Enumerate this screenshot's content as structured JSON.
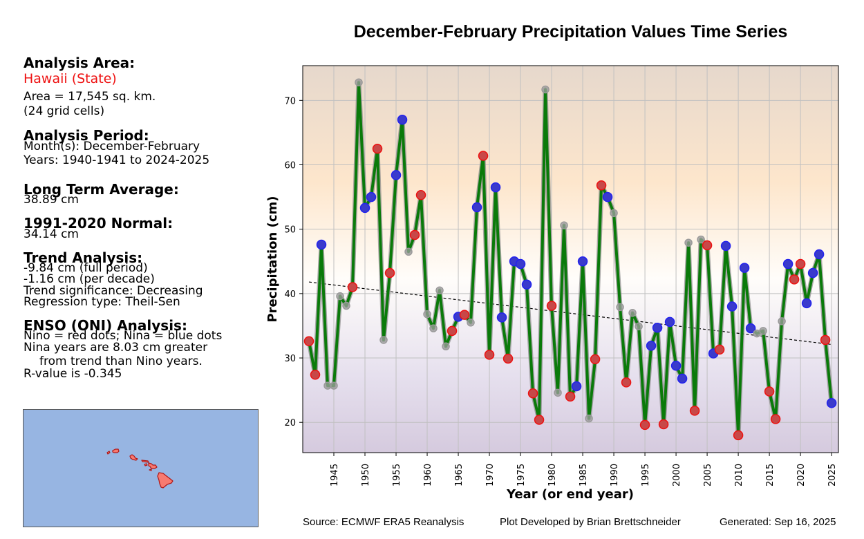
{
  "info_panel": {
    "area_header": "Analysis Area:",
    "area_name": "Hawaii (State)",
    "area_size": "Area = 17,545 sq. km.",
    "grid_cells": "(24 grid cells)",
    "period_header": "Analysis Period:",
    "months": "Month(s): December-February",
    "years": "Years: 1940-1941 to 2024-2025",
    "lta_header": "Long Term Average:",
    "lta_value": "38.89 cm",
    "normal_header": "1991-2020 Normal:",
    "normal_value": "34.14 cm",
    "trend_header": "Trend Analysis:",
    "trend_full": "-9.84 cm (full period)",
    "trend_decade": "-1.16 cm (per decade)",
    "trend_sig": "Trend significance: Decreasing",
    "regression": "Regression type: Theil-Sen",
    "enso_header": "ENSO (ONI) Analysis:",
    "enso_legend": "Nino = red dots; Nina = blue dots",
    "enso_line1": "Nina years are 8.03 cm greater",
    "enso_line2": "from trend than Nino years.",
    "rvalue": "R-value is -0.345"
  },
  "footer": {
    "source": "Source: ECMWF ERA5 Reanalysis",
    "developer": "Plot Developed by Brian Brettschneider",
    "generated": "Generated: Sep 16, 2025"
  },
  "colors": {
    "line": "#0a7a0a",
    "nino": "#c84848",
    "nino_edge": "#ee1111",
    "nina": "#3a3acc",
    "nina_edge": "#2222ee",
    "neutral": "#a0a0a0",
    "map_ocean": "#97b5e2",
    "map_land": "#f77a70"
  },
  "chart_data": {
    "type": "line",
    "title": "December-February Precipitation Values Time Series",
    "xlabel": "Year (or end year)",
    "ylabel": "Precipitation (cm)",
    "xlim": [
      1940,
      2026.1
    ],
    "ylim": [
      15.3,
      75.4
    ],
    "xticks": [
      1945,
      1950,
      1955,
      1960,
      1965,
      1970,
      1975,
      1980,
      1985,
      1990,
      1995,
      2000,
      2005,
      2010,
      2015,
      2020,
      2025
    ],
    "yticks": [
      20,
      30,
      40,
      50,
      60,
      70
    ],
    "grid": true,
    "x": [
      1941,
      1942,
      1943,
      1944,
      1945,
      1946,
      1947,
      1948,
      1949,
      1950,
      1951,
      1952,
      1953,
      1954,
      1955,
      1956,
      1957,
      1958,
      1959,
      1960,
      1961,
      1962,
      1963,
      1964,
      1965,
      1966,
      1967,
      1968,
      1969,
      1970,
      1971,
      1972,
      1973,
      1974,
      1975,
      1976,
      1977,
      1978,
      1979,
      1980,
      1981,
      1982,
      1983,
      1984,
      1985,
      1986,
      1987,
      1988,
      1989,
      1990,
      1991,
      1992,
      1993,
      1994,
      1995,
      1996,
      1997,
      1998,
      1999,
      2000,
      2001,
      2002,
      2003,
      2004,
      2005,
      2006,
      2007,
      2008,
      2009,
      2010,
      2011,
      2012,
      2013,
      2014,
      2015,
      2016,
      2017,
      2018,
      2019,
      2020,
      2021,
      2022,
      2023,
      2024,
      2025
    ],
    "values": [
      32.6,
      27.4,
      47.6,
      25.7,
      25.7,
      39.6,
      38.1,
      41.0,
      72.8,
      53.3,
      55.0,
      62.5,
      32.8,
      43.2,
      58.4,
      67.0,
      46.5,
      49.1,
      55.3,
      36.8,
      34.6,
      40.5,
      31.8,
      34.2,
      36.4,
      36.7,
      35.5,
      53.4,
      61.4,
      30.5,
      56.5,
      36.3,
      29.9,
      45.0,
      44.6,
      41.4,
      24.5,
      20.4,
      71.7,
      38.1,
      24.6,
      50.6,
      24.0,
      25.6,
      45.0,
      20.6,
      29.8,
      56.8,
      55.0,
      52.5,
      37.9,
      26.2,
      37.0,
      34.9,
      19.6,
      31.9,
      34.7,
      19.7,
      35.6,
      28.8,
      26.8,
      47.9,
      21.8,
      48.4,
      47.5,
      30.7,
      31.3,
      47.4,
      38.0,
      18.0,
      44.0,
      34.6,
      33.8,
      34.2,
      24.8,
      20.5,
      35.7,
      44.6,
      42.2,
      44.6,
      38.5,
      43.2,
      46.1,
      32.8,
      23.0
    ],
    "enso": [
      "nino",
      "nino",
      "nina",
      "neutral",
      "neutral",
      "neutral",
      "neutral",
      "nino",
      "neutral",
      "nina",
      "nina",
      "nino",
      "neutral",
      "nino",
      "nina",
      "nina",
      "neutral",
      "nino",
      "nino",
      "neutral",
      "neutral",
      "neutral",
      "neutral",
      "nino",
      "nina",
      "nino",
      "neutral",
      "nina",
      "nino",
      "nino",
      "nina",
      "nina",
      "nino",
      "nina",
      "nina",
      "nina",
      "nino",
      "nino",
      "neutral",
      "nino",
      "neutral",
      "neutral",
      "nino",
      "nina",
      "nina",
      "neutral",
      "nino",
      "nino",
      "nina",
      "neutral",
      "neutral",
      "nino",
      "neutral",
      "neutral",
      "nino",
      "nina",
      "nina",
      "nino",
      "nina",
      "nina",
      "nina",
      "neutral",
      "nino",
      "neutral",
      "nino",
      "nina",
      "nino",
      "nina",
      "nina",
      "nino",
      "nina",
      "nina",
      "neutral",
      "neutral",
      "nino",
      "nino",
      "neutral",
      "nina",
      "nino",
      "nino",
      "nina",
      "nina",
      "nina",
      "nino",
      "nina"
    ],
    "trend": {
      "type": "Theil-Sen",
      "start": [
        1941,
        41.8
      ],
      "end": [
        2025,
        32.1
      ]
    },
    "background_gradient": [
      "#e6d8cc",
      "#fde6cc",
      "#fffdfa",
      "#dcd2e6",
      "#d7ccdf"
    ]
  }
}
